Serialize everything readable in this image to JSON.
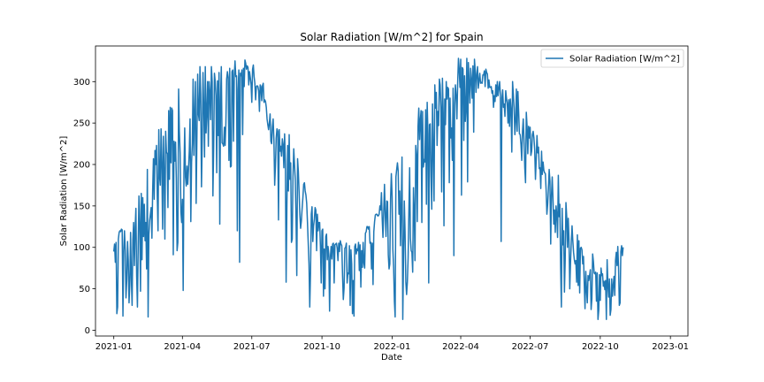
{
  "chart_data": {
    "type": "line",
    "title": "Solar Radiation [W/m^2] for Spain",
    "xlabel": "Date",
    "ylabel": "Solar Radiation [W/m^2]",
    "xlim": [
      "2020-12-08",
      "2023-01-24"
    ],
    "ylim": [
      -7,
      343
    ],
    "x_ticks": [
      "2021-01",
      "2021-04",
      "2021-07",
      "2021-10",
      "2022-01",
      "2022-04",
      "2022-07",
      "2022-10",
      "2023-01"
    ],
    "y_ticks": [
      0,
      50,
      100,
      150,
      200,
      250,
      300
    ],
    "grid": false,
    "legend_position": "top-right",
    "sampling": "daily, 2021-01-01 to 2022-12-31",
    "series": [
      {
        "name": "Solar Radiation [W/m^2]",
        "color": "#1f77b4",
        "values": [
          95,
          104,
          82,
          106,
          20,
          28,
          110,
          118,
          120,
          119,
          122,
          121,
          17,
          95,
          120,
          97,
          39,
          60,
          107,
          84,
          33,
          55,
          118,
          64,
          30,
          109,
          130,
          78,
          124,
          147,
          65,
          28,
          102,
          162,
          129,
          47,
          165,
          85,
          160,
          113,
          152,
          108,
          130,
          74,
          194,
          16,
          115,
          132,
          140,
          148,
          111,
          170,
          207,
          158,
          217,
          200,
          223,
          162,
          120,
          242,
          186,
          175,
          243,
          201,
          122,
          234,
          192,
          110,
          240,
          215,
          213,
          148,
          265,
          182,
          269,
          202,
          268,
          265,
          91,
          228,
          204,
          227,
          183,
          96,
          106,
          291,
          240,
          214,
          143,
          130,
          158,
          48,
          190,
          244,
          185,
          174,
          198,
          176,
          195,
          216,
          255,
          131,
          203,
          225,
          303,
          211,
          261,
          300,
          153,
          231,
          309,
          261,
          253,
          318,
          285,
          173,
          231,
          311,
          269,
          209,
          318,
          238,
          262,
          300,
          222,
          300,
          287,
          254,
          318,
          300,
          162,
          222,
          310,
          300,
          283,
          190,
          301,
          235,
          311,
          128,
          278,
          318,
          226,
          225,
          222,
          245,
          223,
          250,
          303,
          312,
          305,
          205,
          316,
          197,
          198,
          312,
          314,
          228,
          307,
          325,
          306,
          307,
          120,
          290,
          314,
          82,
          310,
          307,
          314,
          236,
          316,
          294,
          326,
          322,
          315,
          319,
          317,
          296,
          312,
          305,
          297,
          275,
          315,
          320,
          306,
          298,
          278,
          294,
          295,
          294,
          289,
          264,
          296,
          294,
          277,
          295,
          298,
          275,
          278,
          276,
          269,
          255,
          248,
          242,
          250,
          261,
          228,
          225,
          246,
          255,
          229,
          175,
          199,
          232,
          243,
          240,
          133,
          242,
          216,
          222,
          210,
          231,
          224,
          196,
          237,
          204,
          58,
          150,
          223,
          168,
          236,
          182,
          202,
          106,
          110,
          185,
          219,
          200,
          182,
          135,
          66,
          207,
          192,
          167,
          140,
          123,
          132,
          147,
          160,
          176,
          178,
          168,
          163,
          153,
          130,
          105,
          80,
          28,
          70,
          140,
          149,
          107,
          126,
          134,
          148,
          145,
          96,
          140,
          120,
          130,
          130,
          101,
          57,
          120,
          122,
          41,
          98,
          50,
          113,
          116,
          85,
          101,
          91,
          23,
          88,
          101,
          86,
          104,
          105,
          57,
          103,
          104,
          105,
          99,
          84,
          105,
          95,
          108,
          104,
          102,
          66,
          37,
          51,
          99,
          100,
          105,
          57,
          69,
          68,
          102,
          30,
          97,
          80,
          20,
          60,
          17,
          101,
          104,
          92,
          98,
          96,
          106,
          72,
          103,
          52,
          96,
          76,
          106,
          81,
          75,
          117,
          119,
          125,
          125,
          122,
          125,
          105,
          106,
          74,
          105,
          55,
          119,
          131,
          139,
          140,
          140,
          138,
          138,
          140,
          150,
          145,
          166,
          135,
          112,
          144,
          176,
          139,
          113,
          156,
          155,
          91,
          74,
          80,
          159,
          189,
          162,
          97,
          75,
          35,
          16,
          185,
          194,
          202,
          192,
          140,
          168,
          102,
          152,
          209,
          13,
          88,
          156,
          118,
          58,
          43,
          58,
          87,
          143,
          196,
          111,
          96,
          94,
          70,
          172,
          144,
          84,
          223,
          212,
          131,
          246,
          268,
          230,
          254,
          265,
          130,
          264,
          197,
          206,
          203,
          266,
          152,
          275,
          237,
          57,
          248,
          249,
          187,
          146,
          273,
          218,
          156,
          296,
          268,
          287,
          223,
          264,
          247,
          303,
          296,
          269,
          167,
          304,
          262,
          126,
          279,
          248,
          300,
          279,
          293,
          291,
          178,
          280,
          232,
          244,
          205,
          292,
          90,
          271,
          296,
          283,
          255,
          299,
          328,
          315,
          293,
          327,
          163,
          317,
          315,
          229,
          307,
          252,
          268,
          328,
          179,
          323,
          300,
          274,
          316,
          302,
          280,
          319,
          239,
          327,
          313,
          287,
          309,
          318,
          292,
          301,
          310,
          298,
          299,
          298,
          308,
          308,
          313,
          294,
          315,
          311,
          309,
          292,
          302,
          293,
          293,
          294,
          286,
          289,
          269,
          283,
          276,
          296,
          282,
          300,
          283,
          292,
          300,
          284,
          107,
          280,
          290,
          269,
          273,
          258,
          289,
          280,
          274,
          250,
          278,
          246,
          279,
          266,
          215,
          300,
          285,
          268,
          236,
          251,
          291,
          240,
          288,
          263,
          237,
          236,
          224,
          205,
          240,
          255,
          230,
          196,
          178,
          263,
          246,
          213,
          246,
          232,
          245,
          211,
          216,
          236,
          240,
          232,
          218,
          182,
          206,
          235,
          214,
          221,
          195,
          196,
          171,
          216,
          188,
          203,
          193,
          190,
          189,
          169,
          140,
          152,
          171,
          194,
          180,
          104,
          163,
          185,
          158,
          128,
          145,
          118,
          150,
          139,
          112,
          187,
          137,
          152,
          77,
          28,
          147,
          103,
          120,
          46,
          84,
          154,
          137,
          100,
          135,
          109,
          50,
          82,
          107,
          126,
          108,
          94,
          85,
          80,
          84,
          58,
          115,
          54,
          108,
          45,
          99,
          100,
          97,
          80,
          89,
          56,
          26,
          71,
          49,
          33,
          66,
          60,
          66,
          73,
          25,
          38,
          92,
          83,
          69,
          68,
          70,
          35,
          69,
          13,
          24,
          67,
          36,
          75,
          66,
          68,
          53,
          59,
          49,
          60,
          13,
          85,
          55,
          40,
          62,
          18,
          25,
          62,
          41,
          54,
          65,
          42,
          84,
          94,
          78,
          101,
          75,
          30,
          33,
          95,
          102,
          90,
          100
        ]
      }
    ]
  }
}
